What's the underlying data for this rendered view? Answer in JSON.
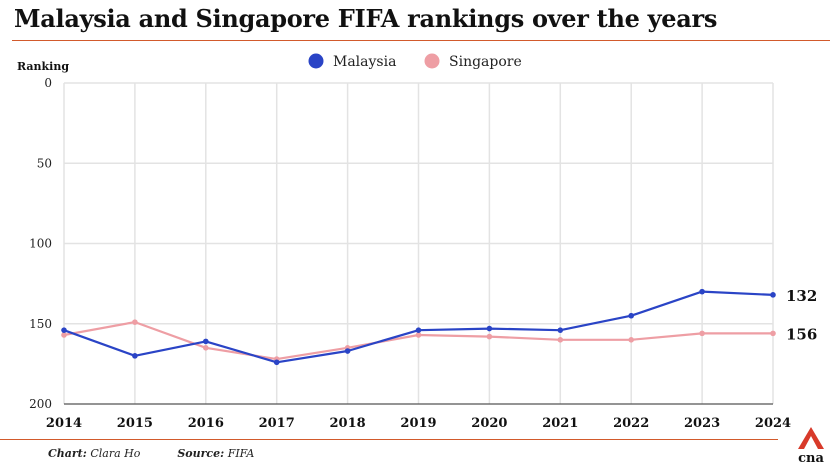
{
  "title": "Malaysia and Singapore FIFA rankings over the years",
  "footer": {
    "chart_label": "Chart:",
    "chart_author": "Clara Ho",
    "source_label": "Source:",
    "source_name": "FIFA"
  },
  "logo_text": "cna",
  "colors": {
    "accent": "#d25a2c",
    "malaysia": "#2a44c6",
    "singapore": "#ee9ea4",
    "grid": "#e3e3e3"
  },
  "chart_data": {
    "type": "line",
    "title": "Malaysia and Singapore FIFA rankings over the years",
    "xlabel": "",
    "ylabel": "Ranking",
    "x": [
      2014,
      2015,
      2016,
      2017,
      2018,
      2019,
      2020,
      2021,
      2022,
      2023,
      2024
    ],
    "ylim": [
      0,
      200
    ],
    "y_inverted": true,
    "yticks": [
      0,
      50,
      100,
      150,
      200
    ],
    "grid": true,
    "legend_position": "top-center",
    "series": [
      {
        "name": "Malaysia",
        "color": "#2a44c6",
        "values": [
          154,
          170,
          161,
          174,
          167,
          154,
          153,
          154,
          145,
          130,
          132
        ],
        "end_label": "132"
      },
      {
        "name": "Singapore",
        "color": "#ee9ea4",
        "values": [
          157,
          149,
          165,
          172,
          165,
          157,
          158,
          160,
          160,
          156,
          156
        ],
        "end_label": "156"
      }
    ]
  }
}
